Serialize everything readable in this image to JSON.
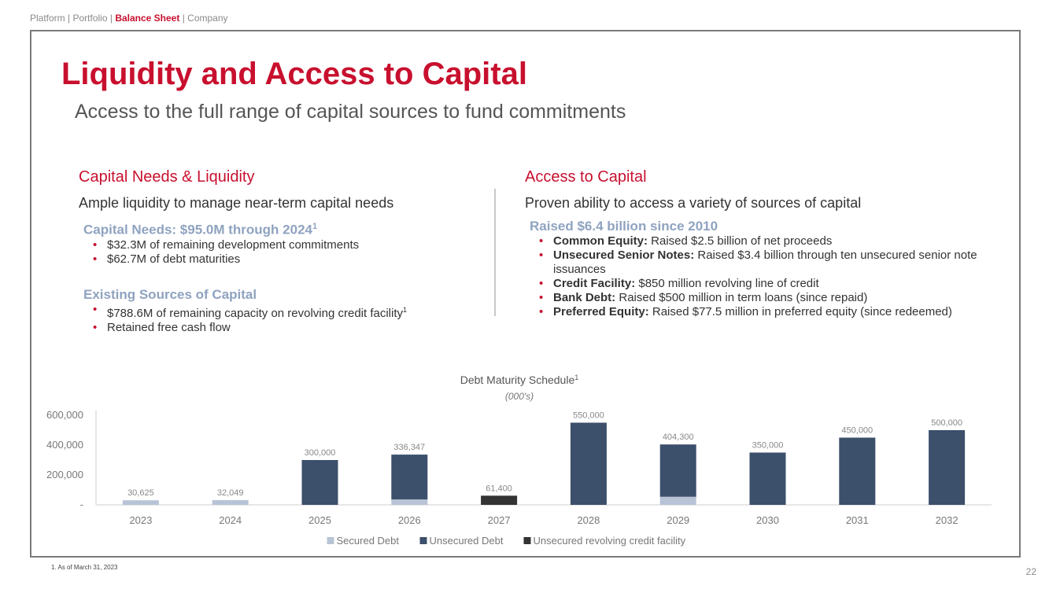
{
  "breadcrumb": {
    "items": [
      "Platform",
      "Portfolio",
      "Balance Sheet",
      "Company"
    ],
    "separator": " | ",
    "active": "Balance Sheet"
  },
  "title": "Liquidity and Access to Capital",
  "subtitle": "Access to the full range of capital sources to fund commitments",
  "left": {
    "heading": "Capital Needs & Liquidity",
    "subheading": "Ample liquidity to manage near-term capital needs",
    "needs_title": "Capital Needs: $95.0M through 2024",
    "needs_title_sup": "1",
    "needs_items": [
      "$32.3M of remaining development commitments",
      "$62.7M of debt maturities"
    ],
    "sources_title": "Existing Sources of Capital",
    "sources_items": [
      {
        "text": "$788.6M of remaining capacity on revolving credit facility",
        "sup": "1"
      },
      {
        "text": "Retained free cash flow",
        "sup": ""
      }
    ]
  },
  "right": {
    "heading": "Access to Capital",
    "subheading": "Proven ability to access a variety of sources of capital",
    "raised_title": "Raised $6.4 billion since 2010",
    "items": [
      {
        "label": "Common Equity:",
        "text": " Raised $2.5 billion of net proceeds"
      },
      {
        "label": "Unsecured Senior Notes:",
        "text": " Raised $3.4 billion through ten unsecured senior note issuances"
      },
      {
        "label": "Credit Facility:",
        "text": " $850 million revolving line of credit"
      },
      {
        "label": "Bank Debt:",
        "text": " Raised $500 million in term loans (since repaid)"
      },
      {
        "label": "Preferred Equity:",
        "text": " Raised $77.5 million in preferred equity (since redeemed)"
      }
    ]
  },
  "chart_data": {
    "type": "bar",
    "stacked": true,
    "title": "Debt Maturity Schedule",
    "title_sup": "1",
    "subtitle": "(000's)",
    "categories": [
      "2023",
      "2024",
      "2025",
      "2026",
      "2027",
      "2028",
      "2029",
      "2030",
      "2031",
      "2032"
    ],
    "series": [
      {
        "name": "Secured Debt",
        "color": "#b8c4d6",
        "values": [
          30625,
          32049,
          0,
          36347,
          0,
          0,
          54300,
          0,
          0,
          0
        ]
      },
      {
        "name": "Unsecured Debt",
        "color": "#3c4f6b",
        "values": [
          0,
          0,
          300000,
          300000,
          0,
          550000,
          350000,
          350000,
          450000,
          500000
        ]
      },
      {
        "name": "Unsecured revolving credit facility",
        "color": "#333333",
        "values": [
          0,
          0,
          0,
          0,
          61400,
          0,
          0,
          0,
          0,
          0
        ]
      }
    ],
    "totals_labels": [
      "30,625",
      "32,049",
      "300,000",
      "336,347",
      "61,400",
      "550,000",
      "404,300",
      "350,000",
      "450,000",
      "500,000"
    ],
    "totals": [
      30625,
      32049,
      300000,
      336347,
      61400,
      550000,
      404300,
      350000,
      450000,
      500000
    ],
    "yticks": [
      0,
      200000,
      400000,
      600000
    ],
    "ytick_labels": [
      "-",
      "200,000",
      "400,000",
      "600,000"
    ],
    "ylim": [
      0,
      600000
    ],
    "legend_position": "bottom-center"
  },
  "footnote": "1.   As of March 31, 2023",
  "page_number": "22"
}
